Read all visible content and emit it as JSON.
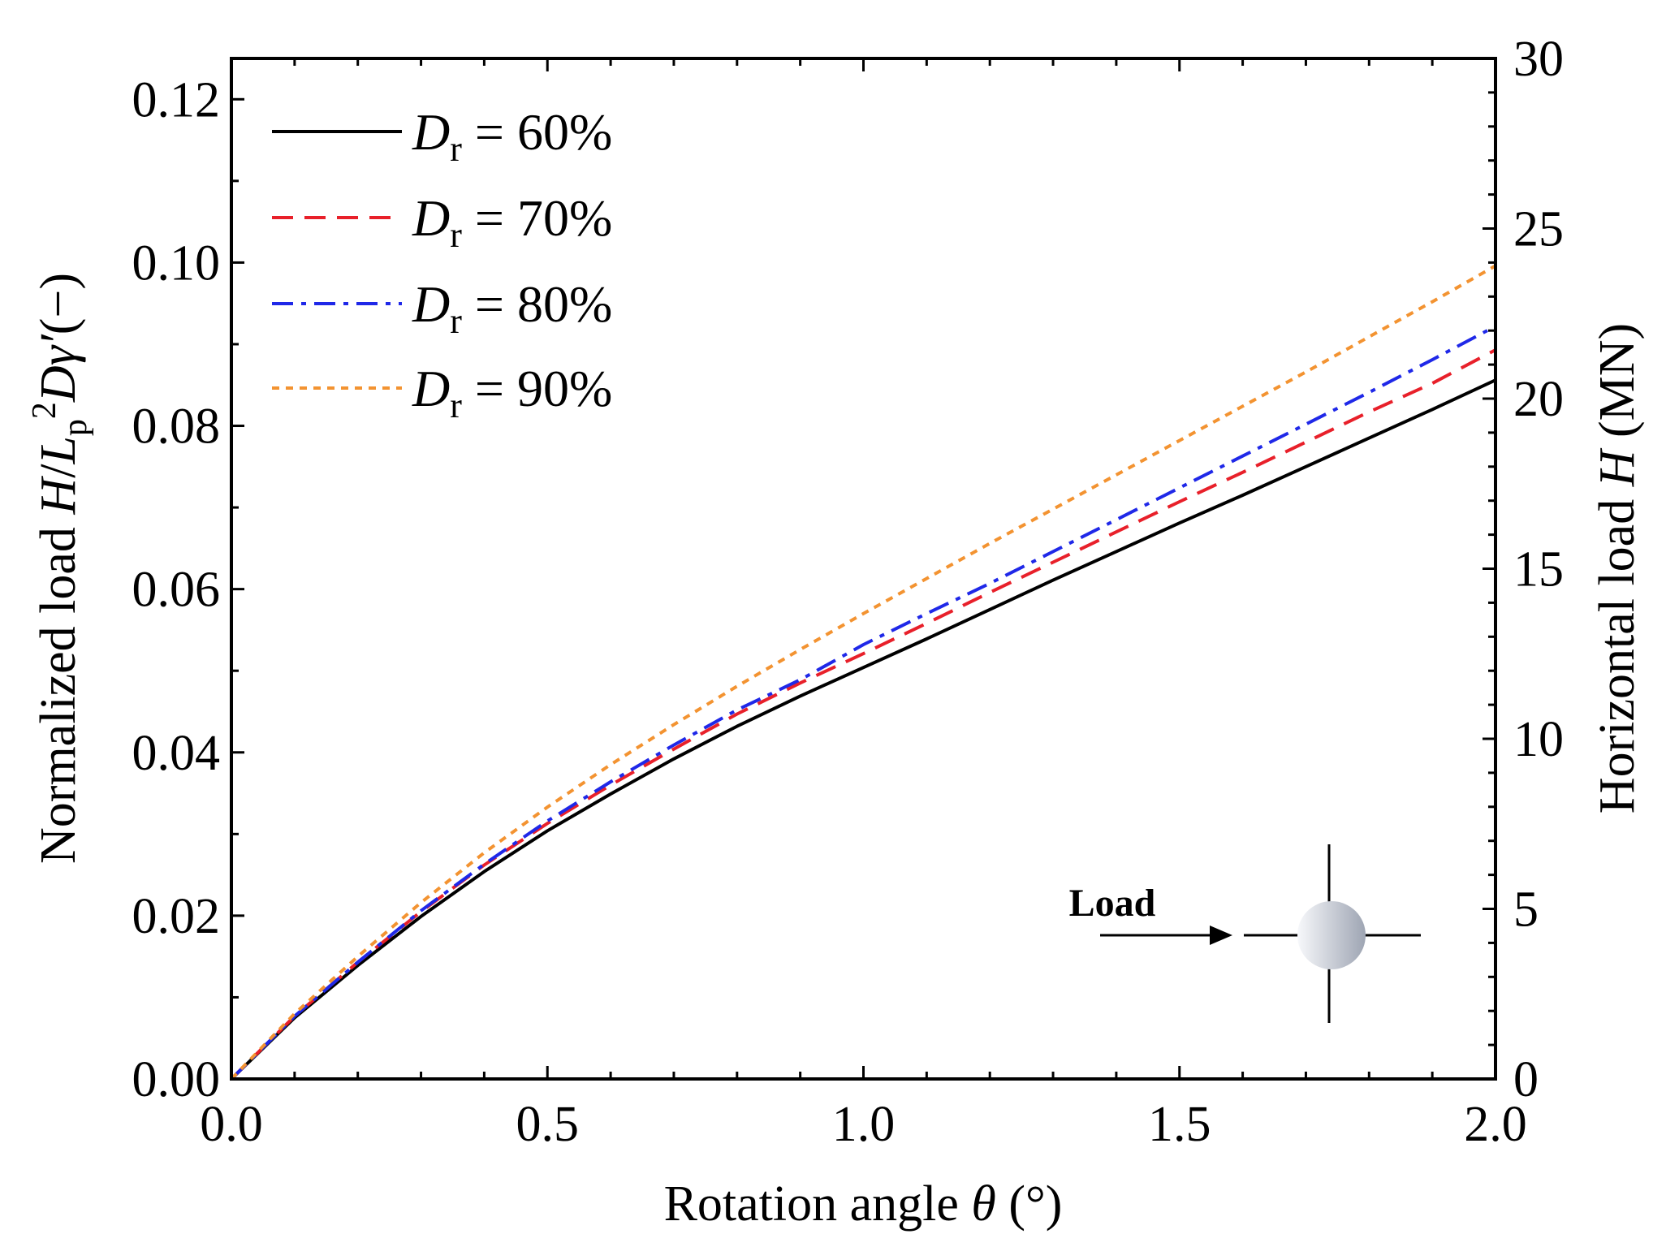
{
  "chart_data": {
    "type": "line",
    "xlabel_prefix": "Rotation angle ",
    "xlabel_symbol": "θ",
    "xlabel_unit": " (°)",
    "ylabel_left_prefix": "Normalized load ",
    "ylabel_left_var1": "H",
    "ylabel_left_slash": "/",
    "ylabel_left_var2": "L",
    "ylabel_left_sub": "p",
    "ylabel_left_sup": "2",
    "ylabel_left_var3": "Dγ′",
    "ylabel_left_suffix": "(−)",
    "ylabel_right_prefix": "Horizontal load ",
    "ylabel_right_var": "H",
    "ylabel_right_suffix": " (MN)",
    "xlim": [
      0,
      2.0
    ],
    "ylim_left": [
      0,
      0.125
    ],
    "ylim_right": [
      0,
      30
    ],
    "x_ticks": [
      "0.0",
      "0.5",
      "1.0",
      "1.5",
      "2.0"
    ],
    "y_left_ticks": [
      "0.00",
      "0.02",
      "0.04",
      "0.06",
      "0.08",
      "0.10",
      "0.12"
    ],
    "y_right_ticks": [
      "0",
      "5",
      "10",
      "15",
      "20",
      "25",
      "30"
    ],
    "x": [
      0,
      0.1,
      0.2,
      0.3,
      0.4,
      0.5,
      0.6,
      0.7,
      0.8,
      0.9,
      1.0,
      1.1,
      1.2,
      1.3,
      1.4,
      1.5,
      1.6,
      1.7,
      1.8,
      1.9,
      2.0
    ],
    "series": [
      {
        "name": "Dr = 60%",
        "var": "D",
        "sub": "r",
        "label": " = 60%",
        "color": "#000000",
        "values": [
          0,
          0.0075,
          0.0139,
          0.0199,
          0.0254,
          0.0304,
          0.0349,
          0.0392,
          0.0432,
          0.0469,
          0.0504,
          0.0539,
          0.0575,
          0.0611,
          0.0646,
          0.0681,
          0.0715,
          0.075,
          0.0785,
          0.082,
          0.0856
        ]
      },
      {
        "name": "Dr = 70%",
        "var": "D",
        "sub": "r",
        "label": " = 70%",
        "color": "#e8202a",
        "values": [
          0,
          0.0077,
          0.0143,
          0.0205,
          0.0262,
          0.0313,
          0.036,
          0.0404,
          0.0447,
          0.0485,
          0.0521,
          0.0558,
          0.0596,
          0.0633,
          0.067,
          0.0707,
          0.0743,
          0.078,
          0.0817,
          0.0852,
          0.0893
        ]
      },
      {
        "name": "Dr = 80%",
        "var": "D",
        "sub": "r",
        "label": " = 80%",
        "color": "#1f28e8",
        "values": [
          0,
          0.0077,
          0.0143,
          0.0206,
          0.0263,
          0.0316,
          0.0364,
          0.0409,
          0.0452,
          0.0489,
          0.0532,
          0.057,
          0.0607,
          0.0646,
          0.0685,
          0.0724,
          0.0763,
          0.0802,
          0.0841,
          0.0881,
          0.0922
        ]
      },
      {
        "name": "Dr = 90%",
        "var": "D",
        "sub": "r",
        "label": " = 90%",
        "color": "#f39331",
        "values": [
          0,
          0.008,
          0.015,
          0.0216,
          0.0277,
          0.0333,
          0.0385,
          0.0434,
          0.0481,
          0.0526,
          0.057,
          0.0613,
          0.0656,
          0.0698,
          0.074,
          0.0782,
          0.0824,
          0.0866,
          0.0909,
          0.0952,
          0.0996
        ]
      }
    ],
    "legend_location": "top-left",
    "annotation": {
      "text": "Load"
    }
  }
}
